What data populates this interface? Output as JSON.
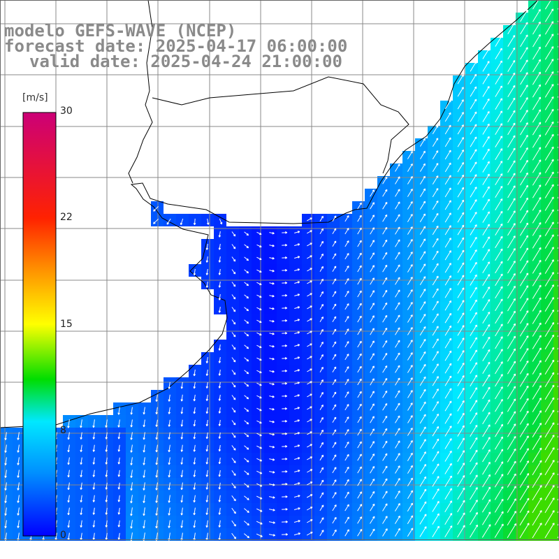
{
  "title": {
    "model_line": "modelo GEFS-WAVE (NCEP)",
    "forecast_line": "forecast date: 2025-04-17 06:00:00",
    "valid_line": "valid date: 2025-04-24 21:00:00"
  },
  "colorbar": {
    "unit": "[m/s]",
    "ticks": [
      "30",
      "22",
      "15",
      "8",
      "0"
    ],
    "range": [
      0,
      30
    ],
    "stops": [
      "#0000ff",
      "#0090ff",
      "#00e8ff",
      "#00dd00",
      "#ffff00",
      "#ff9900",
      "#ff2200",
      "#cc0077"
    ]
  },
  "map": {
    "type": "wind vector field over shaded speed",
    "land_color": "#ffffff",
    "grid_color": "#888888",
    "arrow_color": "#ffffff"
  }
}
